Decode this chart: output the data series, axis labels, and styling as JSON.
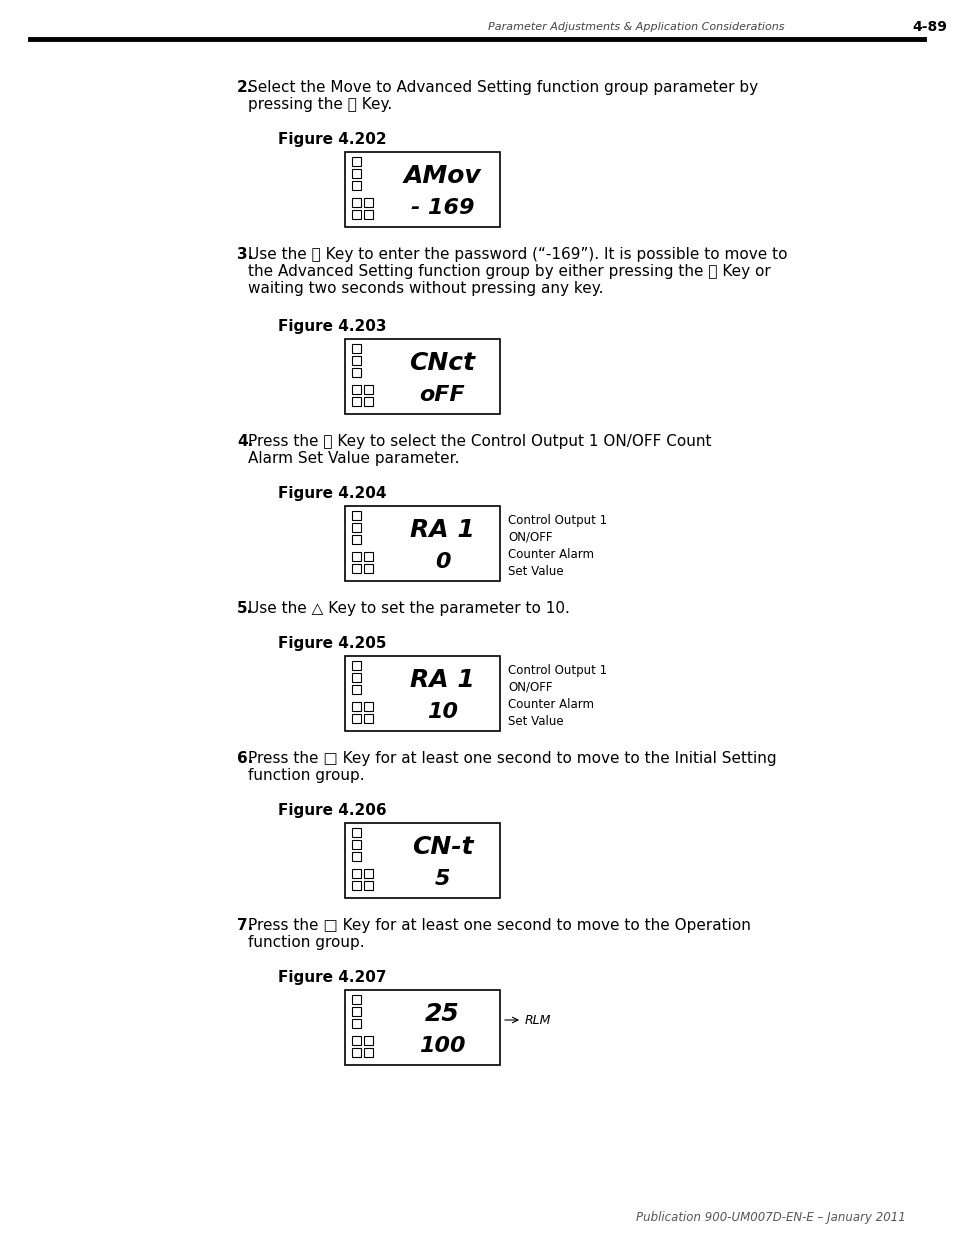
{
  "page_header_text": "Parameter Adjustments & Application Considerations",
  "page_number": "4-89",
  "footer_text": "Publication 900-UM007D-EN-E – January 2011",
  "bg_color": "#ffffff",
  "figures": [
    {
      "label": "Figure 4.202",
      "display_top": "AMov",
      "display_bottom": "- 169",
      "annotation": "",
      "has_annotation": false
    },
    {
      "label": "Figure 4.203",
      "display_top": "CNct",
      "display_bottom": "oFF",
      "annotation": "",
      "has_annotation": false
    },
    {
      "label": "Figure 4.204",
      "display_top": "RA 1",
      "display_bottom": "0",
      "annotation": "Control Output 1\nON/OFF\nCounter Alarm\nSet Value",
      "has_annotation": true
    },
    {
      "label": "Figure 4.205",
      "display_top": "RA 1",
      "display_bottom": "10",
      "annotation": "Control Output 1\nON/OFF\nCounter Alarm\nSet Value",
      "has_annotation": true
    },
    {
      "label": "Figure 4.206",
      "display_top": "CN-t",
      "display_bottom": "5",
      "annotation": "",
      "has_annotation": false
    },
    {
      "label": "Figure 4.207",
      "display_top": "25",
      "display_bottom": "100",
      "annotation": "RLM",
      "has_annotation": true
    }
  ],
  "steps": [
    {
      "number": "2.",
      "lines": [
        "Select the Move to Advanced Setting function group parameter by",
        "pressing the ⓡ Key."
      ]
    },
    {
      "number": "3.",
      "lines": [
        "Use the ⮃ Key to enter the password (“-169”). It is possible to move to",
        "the Advanced Setting function group by either pressing the ⓡ Key or",
        "waiting two seconds without pressing any key."
      ]
    },
    {
      "number": "4.",
      "lines": [
        "Press the ⓡ Key to select the Control Output 1 ON/OFF Count",
        "Alarm Set Value parameter."
      ]
    },
    {
      "number": "5.",
      "lines": [
        "Use the △ Key to set the parameter to 10."
      ]
    },
    {
      "number": "6.",
      "lines": [
        "Press the □ Key for at least one second to move to the Initial Setting",
        "function group."
      ]
    },
    {
      "number": "7.",
      "lines": [
        "Press the □ Key for at least one second to move to the Operation",
        "function group."
      ]
    }
  ],
  "step2_lines": [
    "Select the Move to Advanced Setting function group parameter by",
    "pressing the [ce] Key."
  ],
  "step3_lines": [
    "Use the [v] Key to enter the password (“-169”). It is possible to move to",
    "the Advanced Setting function group by either pressing the [ce] Key or",
    "waiting two seconds without pressing any key."
  ],
  "step4_lines": [
    "Press the [ce] Key to select the Control Output 1 ON/OFF Count",
    "Alarm Set Value parameter."
  ],
  "step5_lines": [
    "Use the [^] Key to set the parameter to 10."
  ],
  "step6_lines": [
    "Press the [o] Key for at least one second to move to the Initial Setting",
    "function group."
  ],
  "step7_lines": [
    "Press the [o] Key for at least one second to move to the Operation",
    "function group."
  ]
}
